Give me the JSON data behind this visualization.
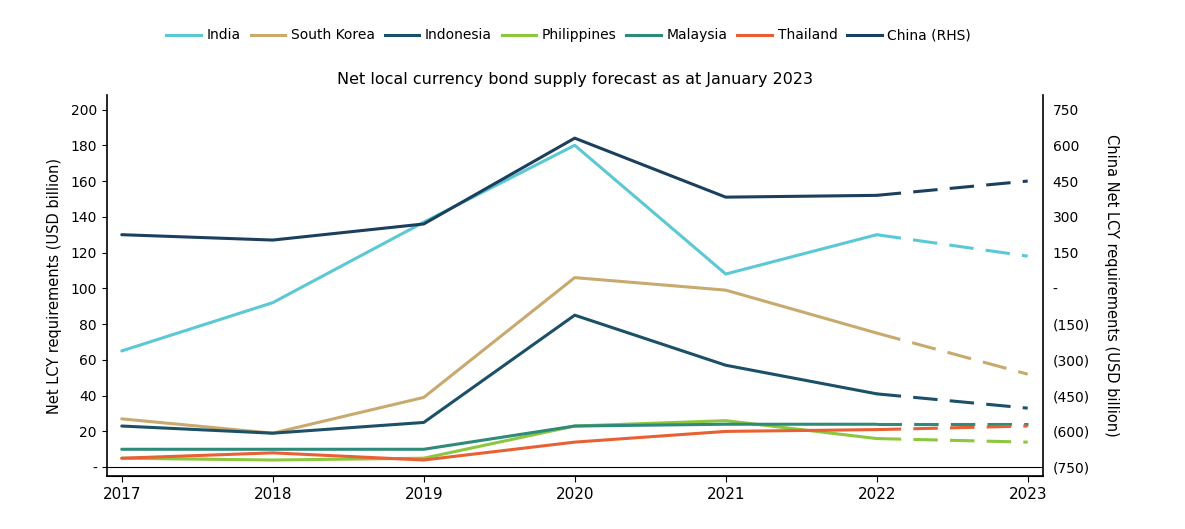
{
  "title": "Net local currency bond supply forecast as at January 2023",
  "ylabel_left": "Net LCY requirements (USD billion)",
  "ylabel_right": "China Net LCY requirements (USD billion)",
  "years_solid": [
    2017,
    2018,
    2019,
    2020,
    2021,
    2022
  ],
  "years_dashed": [
    2022,
    2023
  ],
  "series": {
    "India": {
      "color": "#5BC8D5",
      "solid": [
        65,
        92,
        137,
        180,
        108,
        130
      ],
      "dashed": [
        130,
        118
      ]
    },
    "South Korea": {
      "color": "#C8A96E",
      "solid": [
        27,
        19,
        39,
        106,
        99,
        75
      ],
      "dashed": [
        75,
        52
      ]
    },
    "Indonesia": {
      "color": "#1B5068",
      "solid": [
        23,
        19,
        25,
        85,
        57,
        41
      ],
      "dashed": [
        41,
        33
      ]
    },
    "Philippines": {
      "color": "#8DC63F",
      "solid": [
        5,
        4,
        5,
        23,
        26,
        16
      ],
      "dashed": [
        16,
        14
      ]
    },
    "Malaysia": {
      "color": "#2E8B7A",
      "solid": [
        10,
        10,
        10,
        23,
        24,
        24
      ],
      "dashed": [
        24,
        24
      ]
    },
    "Thailand": {
      "color": "#E86033",
      "solid": [
        5,
        8,
        4,
        14,
        20,
        21
      ],
      "dashed": [
        21,
        23
      ]
    },
    "China": {
      "color": "#1C3F5E",
      "solid": [
        130,
        127,
        136,
        184,
        151,
        152
      ],
      "dashed": [
        152,
        160
      ]
    }
  },
  "yticks_left": [
    0,
    20,
    40,
    60,
    80,
    100,
    120,
    140,
    160,
    180,
    200
  ],
  "yticks_left_labels": [
    "-",
    "20",
    "40",
    "60",
    "80",
    "100",
    "120",
    "140",
    "160",
    "180",
    "200"
  ],
  "yticks_right_labels": [
    "750",
    "600",
    "450",
    "300",
    "150",
    "-",
    "(150)",
    "(300)",
    "(450)",
    "(600)",
    "(750)"
  ],
  "yticks_right_values": [
    750,
    600,
    450,
    300,
    150,
    0,
    -150,
    -300,
    -450,
    -600,
    -750
  ],
  "legend_entries": [
    "India",
    "South Korea",
    "Indonesia",
    "Philippines",
    "Malaysia",
    "Thailand",
    "China (RHS)"
  ],
  "legend_colors": [
    "#5BC8D5",
    "#C8A96E",
    "#1B5068",
    "#8DC63F",
    "#2E8B7A",
    "#E86033",
    "#1C3F5E"
  ],
  "background_color": "#FFFFFF",
  "xmin": 2017,
  "xmax": 2023,
  "ylim_left": [
    -5,
    208
  ],
  "lw": 2.2
}
